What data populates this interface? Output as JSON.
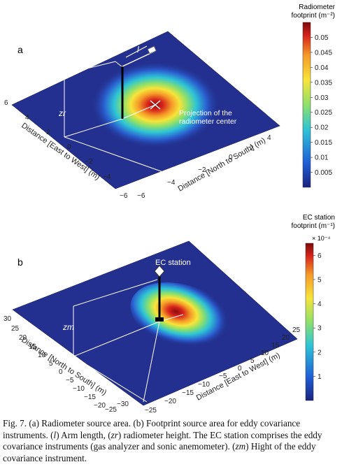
{
  "figure": {
    "caption": {
      "p1": "Fig. 7. (a) Radiometer source area. (b) Footprint source area for eddy covariance instruments. (",
      "l": "l",
      "p2": ") Arm length, (",
      "zr": "zr",
      "p3": ") radiometer height. The EC station comprises the eddy covariance instruments (gas analyzer and sonic anemometer). (",
      "zm": "zm",
      "p4": ") Hight of the eddy covariance instrument."
    }
  },
  "panel_a": {
    "label": "a",
    "colorbar_title_line1": "Radiometer",
    "colorbar_title_line2": "footprint (m⁻²)",
    "height_label": "zr",
    "arm_label": "l",
    "annotation_line1": "Projection of the",
    "annotation_line2": "radiometer center",
    "left_axis_label": "Distance [East to West] (m)",
    "right_axis_label": "Distance [North to South] (m)"
  },
  "panel_b": {
    "label": "b",
    "colorbar_title_line1": "EC station",
    "colorbar_title_line2": "footprint (m⁻¹)",
    "colorbar_multiplier": "× 10⁻⁴",
    "station_label": "EC station",
    "height_label": "zm",
    "left_axis_label": "Distance [North to South] (m)",
    "right_axis_label": "Distance [East to West] (m)"
  },
  "chart_data": [
    {
      "type": "heatmap",
      "title": "",
      "xlabel": "Distance [North to South] (m)",
      "ylabel": "Distance [East to West] (m)",
      "colorbar_label": "Radiometer footprint (m⁻²)",
      "x_ticks": [
        -6,
        -4,
        -2,
        0,
        2,
        4
      ],
      "y_ticks": [
        -6,
        -4,
        -2,
        0,
        2,
        4,
        6
      ],
      "xlim": [
        -6,
        6
      ],
      "ylim": [
        -6,
        6
      ],
      "colorbar_ticks": [
        0.005,
        0.01,
        0.015,
        0.02,
        0.025,
        0.03,
        0.035,
        0.04,
        0.045,
        0.05
      ],
      "color_range": [
        0,
        0.055
      ],
      "peak": {
        "x": 0,
        "y": 0,
        "value": 0.055
      },
      "colormap": [
        "#1a237e",
        "#1f5fd6",
        "#2ec4d6",
        "#8ee06a",
        "#f7e43a",
        "#f59b28",
        "#d7231c",
        "#7a0a0a"
      ]
    },
    {
      "type": "heatmap",
      "title": "",
      "xlabel": "Distance [East to West] (m)",
      "ylabel": "Distance [North to South] (m)",
      "colorbar_label": "EC station footprint (m⁻¹) × 10⁻⁴",
      "x_ticks": [
        -25,
        -20,
        -15,
        -10,
        -5,
        0,
        5,
        10,
        15,
        20,
        25
      ],
      "y_ticks": [
        -30,
        -25,
        -20,
        -15,
        -10,
        -5,
        0,
        5,
        10,
        15,
        20,
        25,
        30
      ],
      "xlim": [
        -30,
        30
      ],
      "ylim": [
        -30,
        30
      ],
      "colorbar_ticks": [
        1,
        2,
        3,
        4,
        5,
        6
      ],
      "color_range": [
        0,
        6.5
      ],
      "peak": {
        "x": 3,
        "y": 2,
        "value": 6.5
      },
      "colormap": [
        "#1a237e",
        "#1f5fd6",
        "#2ec4d6",
        "#8ee06a",
        "#f7e43a",
        "#f59b28",
        "#d7231c",
        "#7a0a0a"
      ]
    }
  ]
}
